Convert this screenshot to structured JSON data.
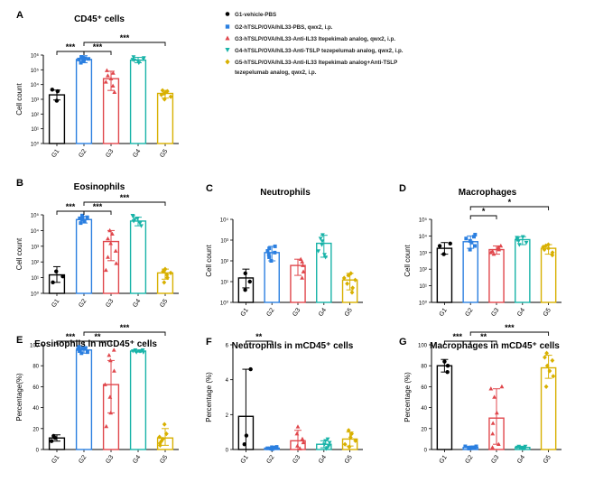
{
  "groups": [
    "G1",
    "G2",
    "G3",
    "G4",
    "G5"
  ],
  "colors": [
    "#000000",
    "#2b7fe0",
    "#e0474c",
    "#18b3a8",
    "#d8b000"
  ],
  "legend": {
    "entries": [
      "G1-vehicle-PBS",
      "G2-hTSLP/OVA/hIL33-PBS, qwx2, i.p.",
      "G3-hTSLP/OVA/hIL33-Anti-IL33 Itepekimab analog, qwx2, i.p.",
      "G4-hTSLP/OVA/hIL33-Anti-TSLP tezepelumab analog, qwx2, i.p.",
      "G5-hTSLP/OVA/hIL33-Anti-IL33 Itepekimab analog+Anti-TSLP",
      "tezepelumab analog, qwx2, i.p."
    ]
  },
  "chart_data": [
    {
      "panel": "A",
      "type": "bar",
      "title": "CD45⁺ cells",
      "ylabel": "Cell count",
      "xlabel": "",
      "scale": "log",
      "ylim": [
        1,
        1000000
      ],
      "yticks": [
        "10⁰",
        "10¹",
        "10²",
        "10³",
        "10⁴",
        "10⁵",
        "10⁶"
      ],
      "categories": [
        "G1",
        "G2",
        "G3",
        "G4",
        "G5"
      ],
      "values": [
        2000,
        500000,
        25000,
        450000,
        2500
      ],
      "errors": [
        [
          900,
          4200
        ],
        [
          300000,
          900000
        ],
        [
          4000,
          80000
        ],
        [
          300000,
          700000
        ],
        [
          1200,
          4000
        ]
      ],
      "points": [
        [
          800,
          3500,
          4500
        ],
        [
          300000,
          400000,
          450000,
          500000,
          550000,
          600000,
          700000,
          750000
        ],
        [
          3000,
          8000,
          15000,
          25000,
          40000,
          60000,
          90000
        ],
        [
          300000,
          400000,
          450000,
          500000,
          550000,
          650000,
          750000
        ],
        [
          1000,
          1500,
          2000,
          2500,
          3000,
          3500,
          4000
        ]
      ],
      "significance": [
        {
          "from": 0,
          "to": 1,
          "label": "***"
        },
        {
          "from": 1,
          "to": 2,
          "label": "***"
        },
        {
          "from": 1,
          "to": 4,
          "label": "***"
        }
      ]
    },
    {
      "panel": "B",
      "type": "bar",
      "title": "Eosinophils",
      "ylabel": "Cell count",
      "xlabel": "",
      "scale": "log",
      "ylim": [
        1,
        100000
      ],
      "yticks": [
        "10⁰",
        "10¹",
        "10²",
        "10³",
        "10⁴",
        "10⁵"
      ],
      "categories": [
        "G1",
        "G2",
        "G3",
        "G4",
        "G5"
      ],
      "values": [
        15,
        50000,
        2000,
        40000,
        20
      ],
      "errors": [
        [
          5,
          50
        ],
        [
          30000,
          80000
        ],
        [
          120,
          10000
        ],
        [
          20000,
          70000
        ],
        [
          8,
          35
        ]
      ],
      "points": [
        [
          5,
          12,
          25
        ],
        [
          30000,
          40000,
          50000,
          60000,
          70000,
          80000,
          90000
        ],
        [
          30,
          80,
          200,
          500,
          1500,
          3000,
          6000,
          10000
        ],
        [
          20000,
          30000,
          40000,
          50000,
          60000,
          80000,
          90000
        ],
        [
          5,
          10,
          15,
          20,
          25,
          30,
          35
        ]
      ],
      "significance": [
        {
          "from": 0,
          "to": 1,
          "label": "***"
        },
        {
          "from": 1,
          "to": 2,
          "label": "***"
        },
        {
          "from": 1,
          "to": 4,
          "label": "***"
        }
      ]
    },
    {
      "panel": "C",
      "type": "bar",
      "title": "Neutrophils",
      "ylabel": "Cell count",
      "xlabel": "",
      "scale": "log",
      "ylim": [
        1,
        10000
      ],
      "yticks": [
        "10⁰",
        "10¹",
        "10²",
        "10³",
        "10⁴"
      ],
      "categories": [
        "G1",
        "G2",
        "G3",
        "G4",
        "G5"
      ],
      "values": [
        15,
        250,
        60,
        700,
        12
      ],
      "errors": [
        [
          5,
          40
        ],
        [
          100,
          500
        ],
        [
          20,
          120
        ],
        [
          150,
          1700
        ],
        [
          4,
          25
        ]
      ],
      "points": [
        [
          4,
          10,
          25
        ],
        [
          100,
          150,
          200,
          250,
          300,
          400,
          500
        ],
        [
          15,
          30,
          60,
          90,
          120
        ],
        [
          150,
          200,
          300,
          600,
          900,
          1200,
          1800
        ],
        [
          3,
          5,
          8,
          12,
          15,
          20,
          25
        ]
      ],
      "significance": []
    },
    {
      "panel": "D",
      "type": "bar",
      "title": "Macrophages",
      "ylabel": "Cell count",
      "xlabel": "",
      "scale": "log",
      "ylim": [
        1,
        100000
      ],
      "yticks": [
        "10⁰",
        "10¹",
        "10²",
        "10³",
        "10⁴",
        "10⁵"
      ],
      "categories": [
        "G1",
        "G2",
        "G3",
        "G4",
        "G5"
      ],
      "values": [
        1800,
        4500,
        1500,
        6000,
        1800
      ],
      "errors": [
        [
          800,
          4000
        ],
        [
          1800,
          10000
        ],
        [
          800,
          2500
        ],
        [
          3000,
          9000
        ],
        [
          800,
          3000
        ]
      ],
      "points": [
        [
          800,
          2500,
          3500
        ],
        [
          1500,
          2500,
          4000,
          5000,
          7000,
          9000,
          12000
        ],
        [
          800,
          1000,
          1200,
          1500,
          1800,
          2000,
          2500
        ],
        [
          3000,
          4000,
          5000,
          6000,
          7000,
          8000,
          9000
        ],
        [
          700,
          1000,
          1500,
          1800,
          2200,
          2600,
          3000
        ]
      ],
      "significance": [
        {
          "from": 1,
          "to": 2,
          "label": "*"
        },
        {
          "from": 1,
          "to": 4,
          "label": "*"
        }
      ]
    },
    {
      "panel": "E",
      "type": "bar",
      "title": "Eosinophils in mCD45⁺ cells",
      "ylabel": "Percentage(%)",
      "xlabel": "",
      "scale": "linear",
      "ylim": [
        0,
        100
      ],
      "yticks": [
        "0",
        "20",
        "40",
        "60",
        "80",
        "100"
      ],
      "categories": [
        "G1",
        "G2",
        "G3",
        "G4",
        "G5"
      ],
      "values": [
        11,
        95,
        62,
        94,
        11
      ],
      "errors": [
        [
          8,
          14
        ],
        [
          92,
          98
        ],
        [
          35,
          85
        ],
        [
          93,
          95
        ],
        [
          4,
          20
        ]
      ],
      "points": [
        [
          8,
          11,
          13
        ],
        [
          92,
          93,
          94,
          95,
          96,
          97,
          98,
          96
        ],
        [
          22,
          35,
          50,
          62,
          75,
          85,
          95,
          90
        ],
        [
          93,
          94,
          94,
          95,
          93,
          94,
          95
        ],
        [
          4,
          6,
          8,
          10,
          12,
          15,
          24
        ]
      ],
      "significance": [
        {
          "from": 0,
          "to": 1,
          "label": "***"
        },
        {
          "from": 1,
          "to": 2,
          "label": "**"
        },
        {
          "from": 1,
          "to": 4,
          "label": "***"
        }
      ]
    },
    {
      "panel": "F",
      "type": "bar",
      "title": "Neutrophils in mCD45⁺ cells",
      "ylabel": "Percentage (%)",
      "xlabel": "",
      "scale": "linear",
      "ylim": [
        0,
        6
      ],
      "yticks": [
        "0",
        "2",
        "4",
        "6"
      ],
      "categories": [
        "G1",
        "G2",
        "G3",
        "G4",
        "G5"
      ],
      "values": [
        1.9,
        0.08,
        0.5,
        0.3,
        0.6
      ],
      "errors": [
        [
          0,
          4.6
        ],
        [
          0.02,
          0.14
        ],
        [
          0,
          1.1
        ],
        [
          0.1,
          0.5
        ],
        [
          0.2,
          1.0
        ]
      ],
      "points": [
        [
          0.3,
          0.8,
          4.6
        ],
        [
          0.02,
          0.05,
          0.07,
          0.09,
          0.11,
          0.13,
          0.15
        ],
        [
          0.05,
          0.2,
          0.4,
          0.6,
          0.9,
          1.3
        ],
        [
          0.05,
          0.1,
          0.2,
          0.3,
          0.4,
          0.5,
          0.6
        ],
        [
          0.15,
          0.3,
          0.5,
          0.7,
          0.9,
          1.1
        ]
      ],
      "significance": [
        {
          "from": 0,
          "to": 1,
          "label": "**"
        }
      ]
    },
    {
      "panel": "G",
      "type": "bar",
      "title": "Macrophages in mCD45⁺ cells",
      "ylabel": "Percentage (%)",
      "xlabel": "",
      "scale": "linear",
      "ylim": [
        0,
        100
      ],
      "yticks": [
        "0",
        "20",
        "40",
        "60",
        "80",
        "100"
      ],
      "categories": [
        "G1",
        "G2",
        "G3",
        "G4",
        "G5"
      ],
      "values": [
        80,
        2,
        30,
        2,
        78
      ],
      "errors": [
        [
          74,
          86
        ],
        [
          1,
          3
        ],
        [
          5,
          58
        ],
        [
          1,
          3
        ],
        [
          68,
          90
        ]
      ],
      "points": [
        [
          74,
          80,
          84
        ],
        [
          1,
          2,
          2,
          3,
          1,
          2,
          3,
          2
        ],
        [
          2,
          5,
          15,
          25,
          35,
          50,
          58,
          60
        ],
        [
          1,
          2,
          2,
          3,
          1,
          2,
          3
        ],
        [
          60,
          70,
          75,
          80,
          85,
          88,
          92
        ]
      ],
      "significance": [
        {
          "from": 0,
          "to": 1,
          "label": "***"
        },
        {
          "from": 1,
          "to": 2,
          "label": "**"
        },
        {
          "from": 1,
          "to": 4,
          "label": "***"
        }
      ]
    }
  ]
}
